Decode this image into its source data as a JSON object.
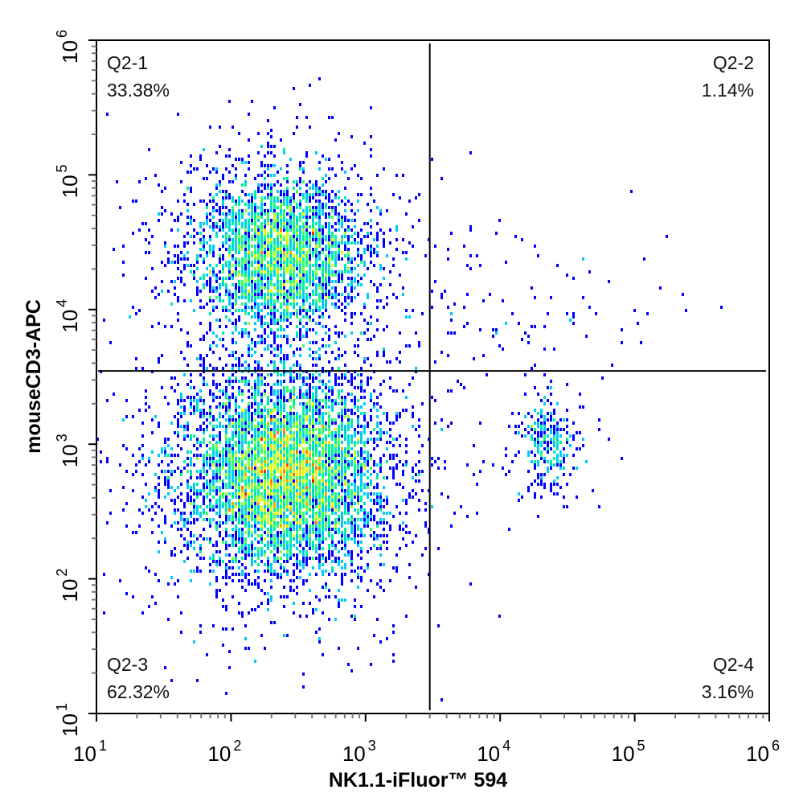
{
  "chart_data": {
    "type": "scatter",
    "subtype": "flow-cytometry-density-plot",
    "xlabel": "NK1.1-iFluor™ 594",
    "ylabel": "mouseCD3-APC",
    "xscale": "log",
    "yscale": "log",
    "xlim": [
      10,
      1000000
    ],
    "ylim": [
      10,
      1000000
    ],
    "x_ticks": [
      {
        "base": "10",
        "exp": "1"
      },
      {
        "base": "10",
        "exp": "2"
      },
      {
        "base": "10",
        "exp": "3"
      },
      {
        "base": "10",
        "exp": "4"
      },
      {
        "base": "10",
        "exp": "5"
      },
      {
        "base": "10",
        "exp": "6"
      }
    ],
    "y_ticks": [
      {
        "base": "10",
        "exp": "1"
      },
      {
        "base": "10",
        "exp": "2"
      },
      {
        "base": "10",
        "exp": "3"
      },
      {
        "base": "10",
        "exp": "4"
      },
      {
        "base": "10",
        "exp": "5"
      },
      {
        "base": "10",
        "exp": "6"
      }
    ],
    "grid": false,
    "gate": {
      "x": 3000,
      "y": 3500
    },
    "quadrants": [
      {
        "name": "Q2-1",
        "percent": "33.38%",
        "position": "top-left"
      },
      {
        "name": "Q2-2",
        "percent": "1.14%",
        "position": "top-right"
      },
      {
        "name": "Q2-3",
        "percent": "62.32%",
        "position": "bottom-left"
      },
      {
        "name": "Q2-4",
        "percent": "3.16%",
        "position": "bottom-right"
      }
    ],
    "populations": [
      {
        "quadrant": "Q2-3",
        "center": [
          250,
          600
        ],
        "fraction": 0.6232
      },
      {
        "quadrant": "Q2-1",
        "center": [
          230,
          25000
        ],
        "fraction": 0.3338
      },
      {
        "quadrant": "Q2-4",
        "center": [
          22000,
          1000
        ],
        "fraction": 0.0316
      },
      {
        "quadrant": "Q2-2",
        "center": [
          15000,
          10000
        ],
        "fraction": 0.0114
      }
    ],
    "colormap": [
      "#0000ff",
      "#00c8ff",
      "#00ff80",
      "#ffff00",
      "#ff0000"
    ]
  }
}
